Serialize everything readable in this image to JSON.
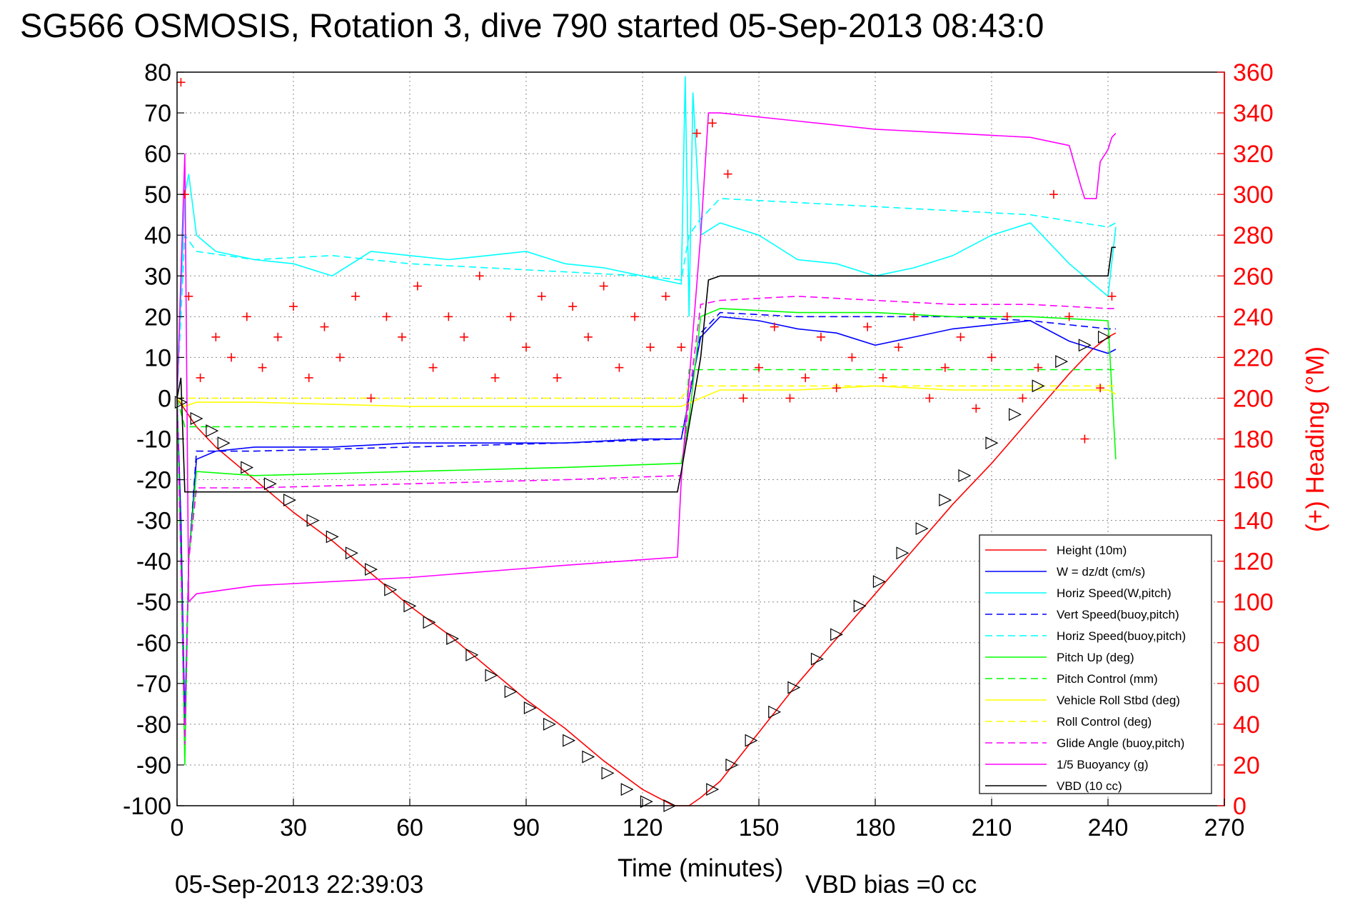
{
  "chart_data": {
    "type": "line",
    "title": "SG566 OSMOSIS, Rotation 3, dive 790 started 05-Sep-2013 08:43:0",
    "xlabel": "Time (minutes)",
    "ylabel_right": "(+) Heading (°M)",
    "xlim": [
      0,
      270
    ],
    "ylim": [
      -100,
      80
    ],
    "ylim_right": [
      0,
      360
    ],
    "xticks": [
      "0",
      "30",
      "60",
      "90",
      "120",
      "150",
      "180",
      "210",
      "240",
      "270"
    ],
    "yticks": [
      "80",
      "70",
      "60",
      "50",
      "40",
      "30",
      "20",
      "10",
      "0",
      "-10",
      "-20",
      "-30",
      "-40",
      "-50",
      "-60",
      "-70",
      "-80",
      "-90",
      "-100"
    ],
    "yticks_right": [
      "360",
      "340",
      "320",
      "300",
      "280",
      "260",
      "240",
      "220",
      "200",
      "180",
      "160",
      "140",
      "120",
      "100",
      "80",
      "60",
      "40",
      "20",
      "0"
    ],
    "grid": true,
    "legend_position": "bottom-right",
    "footer_left": "05-Sep-2013 22:39:03",
    "footer_right": "VBD bias =0 cc",
    "colors": {
      "height": "#ff0000",
      "w": "#0000ff",
      "horiz_speed": "#00ffff",
      "pitch": "#00ff00",
      "roll": "#ffff00",
      "glide": "#ff00ff",
      "vbd": "#000000",
      "heading": "#ff0000",
      "right_axis": "#ff0000"
    },
    "series": [
      {
        "name": "Height (10m)",
        "style": "solid",
        "color": "#ff0000",
        "x": [
          0,
          5,
          10,
          20,
          30,
          40,
          50,
          60,
          70,
          80,
          90,
          100,
          110,
          120,
          128,
          132,
          135,
          140,
          150,
          160,
          170,
          180,
          190,
          200,
          210,
          220,
          230,
          236,
          240,
          242
        ],
        "y": [
          0,
          -7,
          -12,
          -20,
          -28,
          -35,
          -43,
          -51,
          -58,
          -66,
          -74,
          -81,
          -89,
          -96,
          -100,
          -100,
          -98,
          -94,
          -82,
          -70,
          -59,
          -48,
          -37,
          -26,
          -16,
          -5,
          6,
          12,
          15,
          16
        ]
      },
      {
        "name": "W = dz/dt (cm/s)",
        "style": "solid",
        "color": "#0000ff",
        "x": [
          0,
          1,
          2,
          3,
          5,
          10,
          20,
          40,
          60,
          80,
          100,
          120,
          130,
          132,
          135,
          140,
          150,
          160,
          170,
          180,
          190,
          200,
          210,
          220,
          230,
          240,
          242
        ],
        "y": [
          0,
          -30,
          -80,
          -40,
          -15,
          -13,
          -12,
          -12,
          -11,
          -11,
          -11,
          -10,
          -10,
          0,
          15,
          20,
          19,
          17,
          16,
          13,
          15,
          17,
          18,
          19,
          14,
          11,
          12
        ]
      },
      {
        "name": "Horiz Speed(W,pitch)",
        "style": "solid",
        "color": "#00ffff",
        "x": [
          0,
          2,
          3,
          5,
          10,
          20,
          30,
          40,
          50,
          60,
          70,
          80,
          90,
          100,
          110,
          120,
          130,
          131,
          132,
          133,
          135,
          140,
          150,
          160,
          170,
          180,
          190,
          200,
          210,
          220,
          230,
          240,
          242
        ],
        "y": [
          0,
          50,
          55,
          40,
          36,
          34,
          33,
          30,
          36,
          35,
          34,
          35,
          36,
          33,
          32,
          30,
          28,
          79,
          20,
          75,
          40,
          43,
          40,
          34,
          33,
          30,
          32,
          35,
          40,
          43,
          33,
          25,
          42
        ]
      },
      {
        "name": "Vert Speed(buoy,pitch)",
        "style": "dashed",
        "color": "#0000ff",
        "x": [
          0,
          1,
          2,
          3,
          5,
          20,
          60,
          100,
          130,
          132,
          135,
          140,
          160,
          180,
          200,
          220,
          240,
          242
        ],
        "y": [
          0,
          -30,
          -85,
          -40,
          -13,
          -13,
          -12,
          -11,
          -10,
          0,
          16,
          21,
          20,
          20,
          20,
          19,
          17,
          17
        ]
      },
      {
        "name": "Horiz Speed(buoy,pitch)",
        "style": "dashed",
        "color": "#00ffff",
        "x": [
          0,
          2,
          5,
          20,
          40,
          60,
          80,
          100,
          120,
          130,
          132,
          135,
          140,
          160,
          180,
          200,
          220,
          240,
          242
        ],
        "y": [
          0,
          40,
          36,
          34,
          35,
          33,
          32,
          31,
          30,
          29,
          40,
          44,
          49,
          48,
          47,
          46,
          45,
          42,
          43
        ]
      },
      {
        "name": "Pitch Up (deg)",
        "style": "solid",
        "color": "#00ff00",
        "x": [
          0,
          1,
          2,
          3,
          5,
          20,
          60,
          100,
          130,
          132,
          135,
          140,
          160,
          180,
          200,
          220,
          240,
          242
        ],
        "y": [
          0,
          -40,
          -90,
          -40,
          -18,
          -19,
          -18,
          -17,
          -16,
          -5,
          20,
          22,
          21,
          21,
          20,
          20,
          19,
          -15
        ]
      },
      {
        "name": "Pitch Control (mm)",
        "style": "dashed",
        "color": "#00ff00",
        "x": [
          0,
          2,
          5,
          130,
          131,
          132,
          140,
          242
        ],
        "y": [
          0,
          -7,
          -7,
          -7,
          -7,
          7,
          7,
          7
        ]
      },
      {
        "name": "Vehicle Roll Stbd (deg)",
        "style": "solid",
        "color": "#ffff00",
        "x": [
          0,
          2,
          5,
          20,
          60,
          100,
          130,
          135,
          140,
          160,
          180,
          200,
          220,
          240,
          242
        ],
        "y": [
          0,
          -2,
          -1,
          -1,
          -2,
          -2,
          -2,
          0,
          2,
          2,
          3,
          2,
          2,
          2,
          1
        ]
      },
      {
        "name": "Roll Control (deg)",
        "style": "dashed",
        "color": "#ffff00",
        "x": [
          0,
          5,
          130,
          132,
          140,
          242
        ],
        "y": [
          0,
          0,
          0,
          3,
          3,
          3
        ]
      },
      {
        "name": "Glide Angle (buoy,pitch)",
        "style": "dashed",
        "color": "#ff00ff",
        "x": [
          0,
          1,
          2,
          3,
          5,
          20,
          60,
          100,
          130,
          132,
          135,
          140,
          160,
          180,
          200,
          220,
          240,
          242
        ],
        "y": [
          0,
          -40,
          -85,
          -40,
          -22,
          -22,
          -21,
          -20,
          -19,
          0,
          23,
          24,
          25,
          24,
          23,
          23,
          22,
          22
        ]
      },
      {
        "name": "1/5 Buoyancy (g)",
        "style": "solid",
        "color": "#ff00ff",
        "x": [
          0,
          2,
          3,
          5,
          20,
          60,
          100,
          129,
          130,
          135,
          137,
          140,
          160,
          180,
          200,
          220,
          230,
          233,
          234,
          237,
          238,
          240,
          241,
          242
        ],
        "y": [
          0,
          60,
          -50,
          -48,
          -46,
          -44,
          -41,
          -39,
          -20,
          40,
          70,
          70,
          68,
          66,
          65,
          64,
          62,
          52,
          49,
          49,
          58,
          61,
          64,
          65
        ]
      },
      {
        "name": "VBD (10 cc)",
        "style": "solid",
        "color": "#000000",
        "x": [
          0,
          1,
          2,
          5,
          20,
          60,
          100,
          129,
          130,
          135,
          137,
          140,
          160,
          180,
          200,
          220,
          240,
          241,
          242
        ],
        "y": [
          0,
          5,
          -23,
          -23,
          -23,
          -23,
          -23,
          -23,
          -18,
          10,
          29,
          30,
          30,
          30,
          30,
          30,
          30,
          37,
          37
        ]
      }
    ],
    "markers": {
      "name": "dive markers (triangles)",
      "color": "#000000",
      "x": [
        1,
        5,
        9,
        12,
        18,
        24,
        29,
        35,
        40,
        45,
        50,
        55,
        60,
        65,
        71,
        76,
        81,
        86,
        91,
        96,
        101,
        106,
        111,
        116,
        121,
        127,
        138,
        143,
        148,
        154,
        159,
        165,
        170,
        176,
        181,
        187,
        192,
        198,
        203,
        210,
        216,
        222,
        228,
        234,
        239
      ],
      "y": [
        -1,
        -5,
        -8,
        -11,
        -17,
        -21,
        -25,
        -30,
        -34,
        -38,
        -42,
        -47,
        -51,
        -55,
        -59,
        -63,
        -68,
        -72,
        -76,
        -80,
        -84,
        -88,
        -92,
        -96,
        -99,
        -100,
        -96,
        -90,
        -84,
        -77,
        -71,
        -64,
        -58,
        -51,
        -45,
        -38,
        -32,
        -25,
        -19,
        -11,
        -4,
        3,
        9,
        13,
        15
      ]
    },
    "heading_points": {
      "name": "(+) Heading",
      "marker": "+",
      "color": "#ff0000",
      "x": [
        1,
        2,
        3,
        6,
        10,
        14,
        18,
        22,
        26,
        30,
        34,
        38,
        42,
        46,
        50,
        54,
        58,
        62,
        66,
        70,
        74,
        78,
        82,
        86,
        90,
        94,
        98,
        102,
        106,
        110,
        114,
        118,
        122,
        126,
        130,
        134,
        138,
        142,
        146,
        150,
        154,
        158,
        162,
        166,
        170,
        174,
        178,
        182,
        186,
        190,
        194,
        198,
        202,
        206,
        210,
        214,
        218,
        222,
        226,
        230,
        234,
        238,
        241
      ],
      "y": [
        355,
        300,
        250,
        210,
        230,
        220,
        240,
        215,
        230,
        245,
        210,
        235,
        220,
        250,
        200,
        240,
        230,
        255,
        215,
        240,
        230,
        260,
        210,
        240,
        225,
        250,
        210,
        245,
        230,
        255,
        215,
        240,
        225,
        250,
        225,
        330,
        335,
        310,
        200,
        215,
        235,
        200,
        210,
        230,
        205,
        220,
        235,
        210,
        225,
        240,
        200,
        215,
        230,
        195,
        220,
        240,
        200,
        215,
        300,
        240,
        180,
        205,
        250
      ]
    }
  }
}
